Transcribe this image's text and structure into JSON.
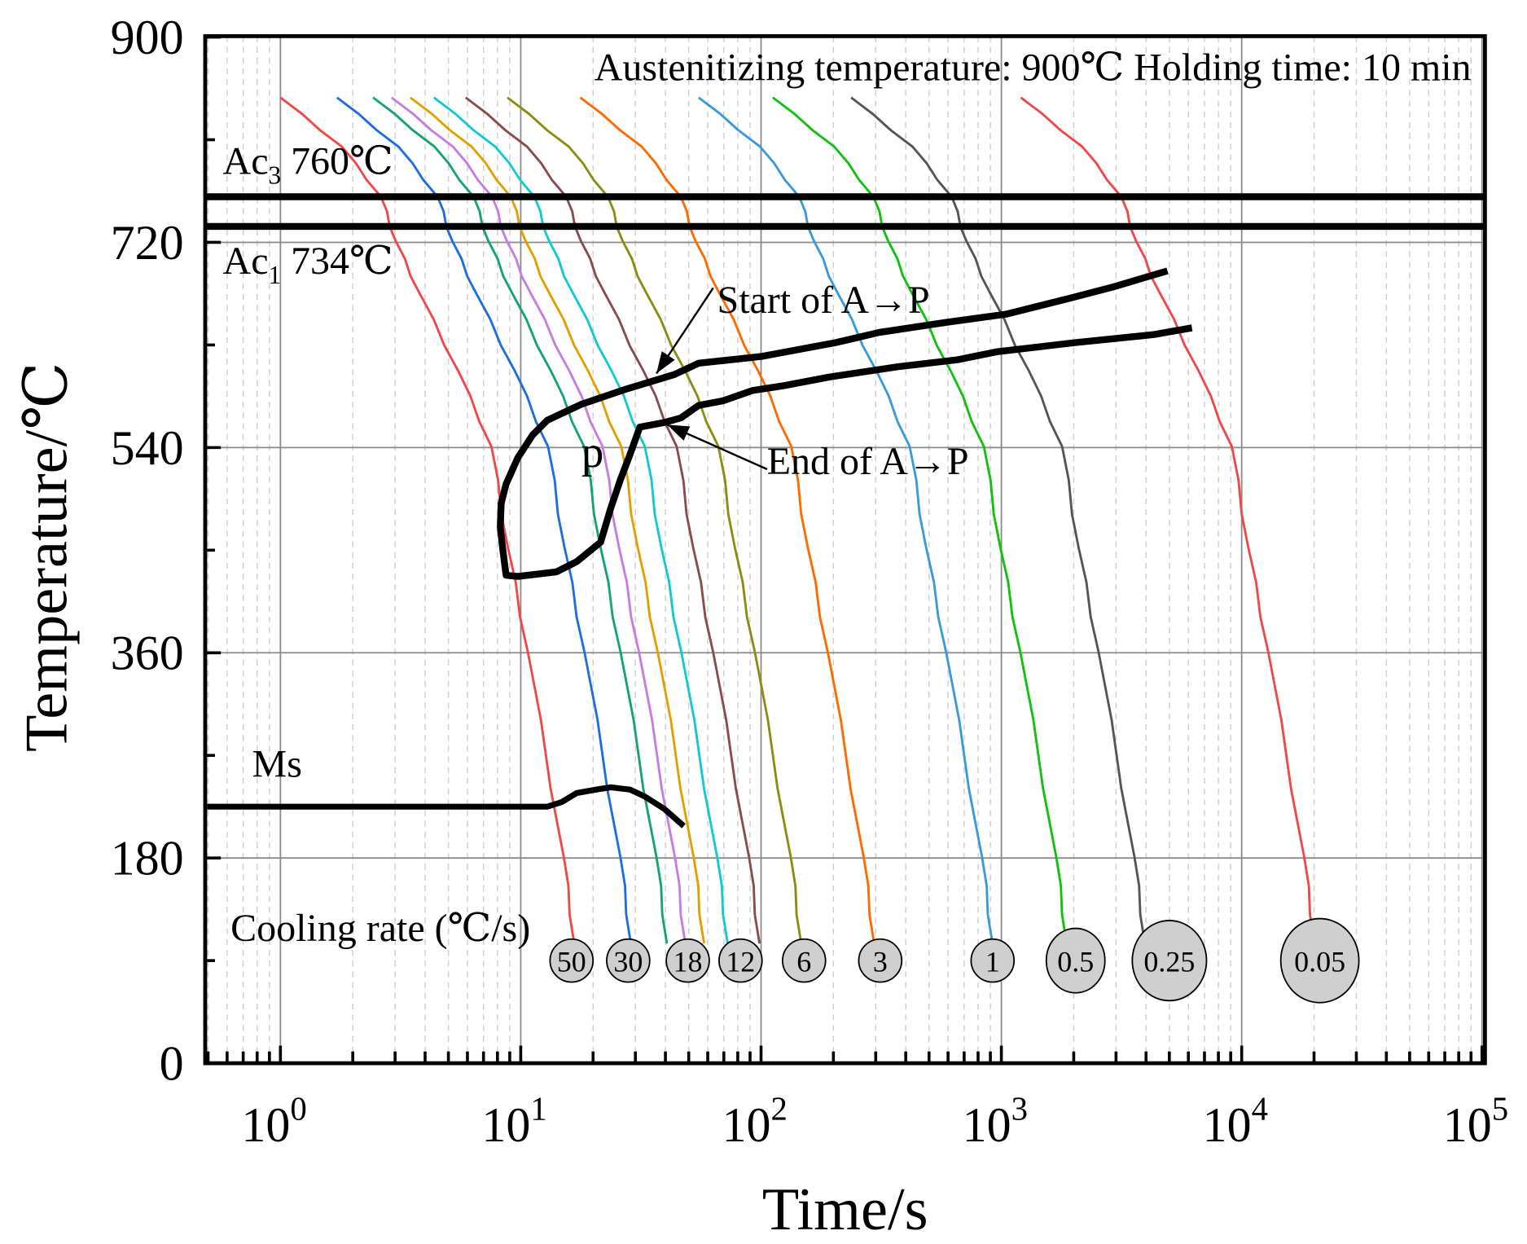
{
  "chart_data": {
    "type": "line",
    "title": "Austenitizing temperature: 900℃ Holding time: 10 min",
    "xlabel": "Time/s",
    "ylabel": "Temperature/℃",
    "xscale": "log",
    "xlim": [
      0.49,
      100000
    ],
    "ylim": [
      0,
      900
    ],
    "grid": true,
    "x_ticks": [
      {
        "value": 1,
        "base": "10",
        "exp": "0"
      },
      {
        "value": 10,
        "base": "10",
        "exp": "1"
      },
      {
        "value": 100,
        "base": "10",
        "exp": "2"
      },
      {
        "value": 1000,
        "base": "10",
        "exp": "3"
      },
      {
        "value": 10000,
        "base": "10",
        "exp": "4"
      },
      {
        "value": 100000,
        "base": "10",
        "exp": "5"
      }
    ],
    "y_ticks": [
      {
        "value": 0,
        "label": "0"
      },
      {
        "value": 180,
        "label": "180"
      },
      {
        "value": 360,
        "label": "360"
      },
      {
        "value": 540,
        "label": "540"
      },
      {
        "value": 720,
        "label": "720"
      },
      {
        "value": 900,
        "label": "900"
      }
    ],
    "cooling_rate_title": "Cooling rate (℃/s)",
    "curve_profile": {
      "time_factor": [
        1,
        1.8,
        2.62,
        3.02,
        3.8,
        5.5,
        7.55,
        8.85,
        10.7,
        15.1,
        16.7
      ],
      "temperature": [
        847,
        804,
        760,
        721,
        675,
        607,
        541,
        452,
        361,
        181,
        105
      ]
    },
    "series": [
      {
        "label": "50",
        "t_start": 1.0,
        "color": "#f04848"
      },
      {
        "label": "30",
        "t_start": 1.72,
        "color": "#1f6ee0"
      },
      {
        "label": "18",
        "t_start": 2.43,
        "color": "#14a46c"
      },
      {
        "label": null,
        "t_start": 2.9,
        "color": "#c67ce0"
      },
      {
        "label": null,
        "t_start": 3.47,
        "color": "#e2a000"
      },
      {
        "label": "12",
        "t_start": 4.35,
        "color": "#12c8d2"
      },
      {
        "label": null,
        "t_start": 5.9,
        "color": "#8a4b4b"
      },
      {
        "label": "6",
        "t_start": 8.8,
        "color": "#8c8c12"
      },
      {
        "label": "3",
        "t_start": 17.7,
        "color": "#ff6a00"
      },
      {
        "label": "1",
        "t_start": 55,
        "color": "#3a9ad8"
      },
      {
        "label": "0.5",
        "t_start": 112,
        "color": "#12bf12"
      },
      {
        "label": "0.25",
        "t_start": 237,
        "color": "#555555"
      },
      {
        "label": "0.05",
        "t_start": 1205,
        "color": "#f04848"
      }
    ],
    "critical_lines": [
      {
        "name": "Ac3",
        "prefix": "Ac",
        "sub": "3",
        "value_text": " 760℃",
        "temperature": 760
      },
      {
        "name": "Ac1",
        "prefix": "Ac",
        "sub": "1",
        "value_text": " 734℃",
        "temperature": 734
      }
    ],
    "transformation_boundary": [
      [
        4910,
        695
      ],
      [
        2932,
        681
      ],
      [
        1928,
        671
      ],
      [
        1047,
        657
      ],
      [
        598,
        650
      ],
      [
        310,
        641
      ],
      [
        204,
        632
      ],
      [
        101,
        620
      ],
      [
        55,
        614
      ],
      [
        43.5,
        604
      ],
      [
        27.2,
        591
      ],
      [
        17.9,
        578
      ],
      [
        12.9,
        564
      ],
      [
        11.2,
        551
      ],
      [
        9.72,
        531
      ],
      [
        8.69,
        508
      ],
      [
        8.29,
        491
      ],
      [
        8.22,
        470
      ],
      [
        8.45,
        448
      ],
      [
        8.69,
        428
      ],
      [
        9.72,
        427
      ],
      [
        14.1,
        431
      ],
      [
        17.1,
        440
      ],
      [
        21.5,
        457
      ],
      [
        23.7,
        487
      ],
      [
        26.0,
        512
      ],
      [
        28.5,
        534
      ],
      [
        31.3,
        558
      ],
      [
        39.6,
        562
      ],
      [
        46.4,
        566
      ],
      [
        55,
        577
      ],
      [
        69.4,
        581
      ],
      [
        91.9,
        590
      ],
      [
        122,
        594
      ],
      [
        194,
        602
      ],
      [
        374,
        611
      ],
      [
        656,
        617
      ],
      [
        955,
        624
      ],
      [
        2018,
        632
      ],
      [
        4266,
        639
      ],
      [
        6209,
        645
      ]
    ],
    "ms_line": {
      "label": "Ms",
      "points": [
        [
          0.49,
          225
        ],
        [
          12.9,
          225
        ],
        [
          14.8,
          229
        ],
        [
          17.1,
          237
        ],
        [
          20.6,
          240
        ],
        [
          23.7,
          242
        ],
        [
          28.5,
          240
        ],
        [
          32.8,
          234
        ],
        [
          39.6,
          223
        ],
        [
          47.7,
          208
        ]
      ]
    },
    "annotations": {
      "start": {
        "text": "Start of A→P",
        "from": [
          63.2,
          680
        ],
        "to": [
          36.7,
          605
        ]
      },
      "end": {
        "text": "End of A→P",
        "from": [
          106,
          521
        ],
        "to": [
          40.7,
          560
        ]
      },
      "region": "p"
    }
  }
}
